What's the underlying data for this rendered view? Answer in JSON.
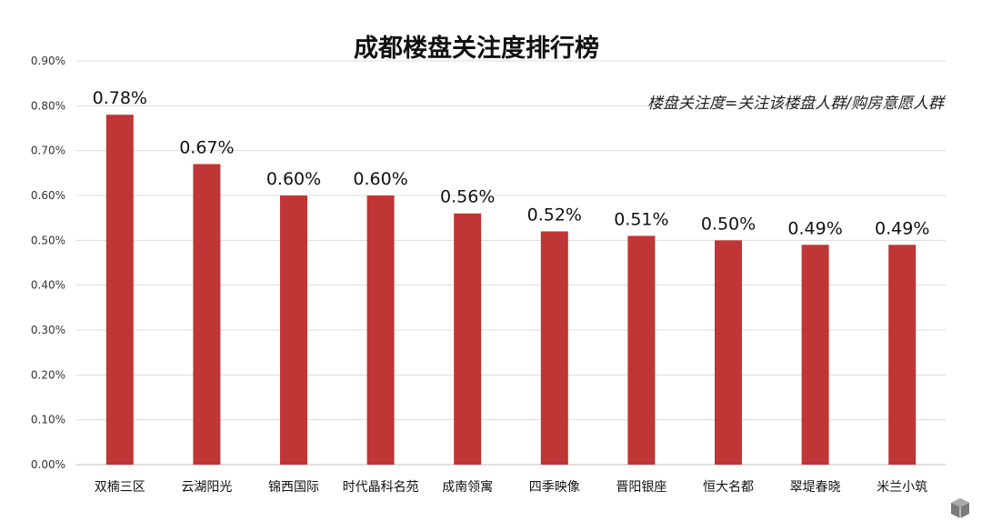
{
  "chart_data": {
    "type": "bar",
    "title": "成都楼盘关注度排行榜",
    "annotation": "楼盘关注度=关注该楼盘人群/购房意愿人群",
    "categories": [
      "双楠三区",
      "云湖阳光",
      "锦西国际",
      "时代晶科名苑",
      "成南领寓",
      "四季映像",
      "晋阳银座",
      "恒大名都",
      "翠堤春晓",
      "米兰小筑"
    ],
    "values": [
      0.78,
      0.67,
      0.6,
      0.6,
      0.56,
      0.52,
      0.51,
      0.5,
      0.49,
      0.49
    ],
    "data_labels": [
      "0.78%",
      "0.67%",
      "0.60%",
      "0.60%",
      "0.56%",
      "0.52%",
      "0.51%",
      "0.50%",
      "0.49%",
      "0.49%"
    ],
    "y_ticks": [
      "0.00%",
      "0.10%",
      "0.20%",
      "0.30%",
      "0.40%",
      "0.50%",
      "0.60%",
      "0.70%",
      "0.80%",
      "0.90%"
    ],
    "ylim": [
      0,
      0.9
    ],
    "unit": "%",
    "grid": true,
    "legend": "none",
    "bar_color": "#c03535"
  }
}
